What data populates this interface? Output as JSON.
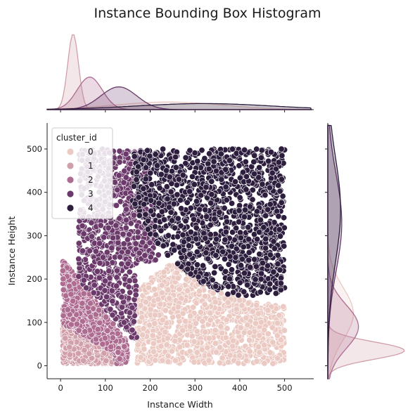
{
  "colors": {
    "cluster_0": "#ebcac3",
    "cluster_1": "#d19fa9",
    "cluster_2": "#ae6c91",
    "cluster_3": "#6b3a6b",
    "cluster_4": "#2d1e3e"
  },
  "chart_data": {
    "type": "scatter",
    "title": "Instance Bounding Box Histogram",
    "xlabel": "Instance Width",
    "ylabel": "Instance Height",
    "xlim": [
      -30,
      565
    ],
    "ylim": [
      -30,
      560
    ],
    "xticks": [
      0,
      100,
      200,
      300,
      400,
      500
    ],
    "yticks": [
      0,
      100,
      200,
      300,
      400,
      500
    ],
    "xtick_labels": [
      "0",
      "100",
      "200",
      "300",
      "400",
      "500"
    ],
    "ytick_labels": [
      "0",
      "100",
      "200",
      "300",
      "400",
      "500"
    ],
    "legend": {
      "title": "cluster_id",
      "location": "upper-left",
      "entries": [
        "0",
        "1",
        "2",
        "3",
        "4"
      ]
    },
    "series": [
      {
        "name": "0",
        "region": {
          "x": [
            170,
            500
          ],
          "y": [
            5,
            240
          ]
        },
        "approx_points": 1100
      },
      {
        "name": "1",
        "region": {
          "x": [
            5,
            120
          ],
          "y": [
            5,
            100
          ]
        },
        "approx_points": 700
      },
      {
        "name": "2",
        "region": {
          "x": [
            5,
            150
          ],
          "y": [
            5,
            250
          ]
        },
        "approx_points": 800
      },
      {
        "name": "3",
        "region": {
          "x": [
            40,
            220
          ],
          "y": [
            40,
            500
          ]
        },
        "approx_points": 900
      },
      {
        "name": "4",
        "region": {
          "x": [
            160,
            500
          ],
          "y": [
            160,
            500
          ]
        },
        "approx_points": 1300
      }
    ],
    "marginal_x_kde": [
      {
        "name": "0",
        "peak_x": 240,
        "spread": 120
      },
      {
        "name": "1",
        "peak_x": 28,
        "spread": 12
      },
      {
        "name": "2",
        "peak_x": 65,
        "spread": 28
      },
      {
        "name": "3",
        "peak_x": 130,
        "spread": 40
      },
      {
        "name": "4",
        "peak_x": 320,
        "spread": 150
      }
    ],
    "marginal_y_kde": [
      {
        "name": "0",
        "peak_y": 120,
        "spread": 60
      },
      {
        "name": "1",
        "peak_y": 35,
        "spread": 20
      },
      {
        "name": "2",
        "peak_y": 90,
        "spread": 50
      },
      {
        "name": "3",
        "peak_y": 330,
        "spread": 110
      },
      {
        "name": "4",
        "peak_y": 360,
        "spread": 120
      }
    ]
  }
}
